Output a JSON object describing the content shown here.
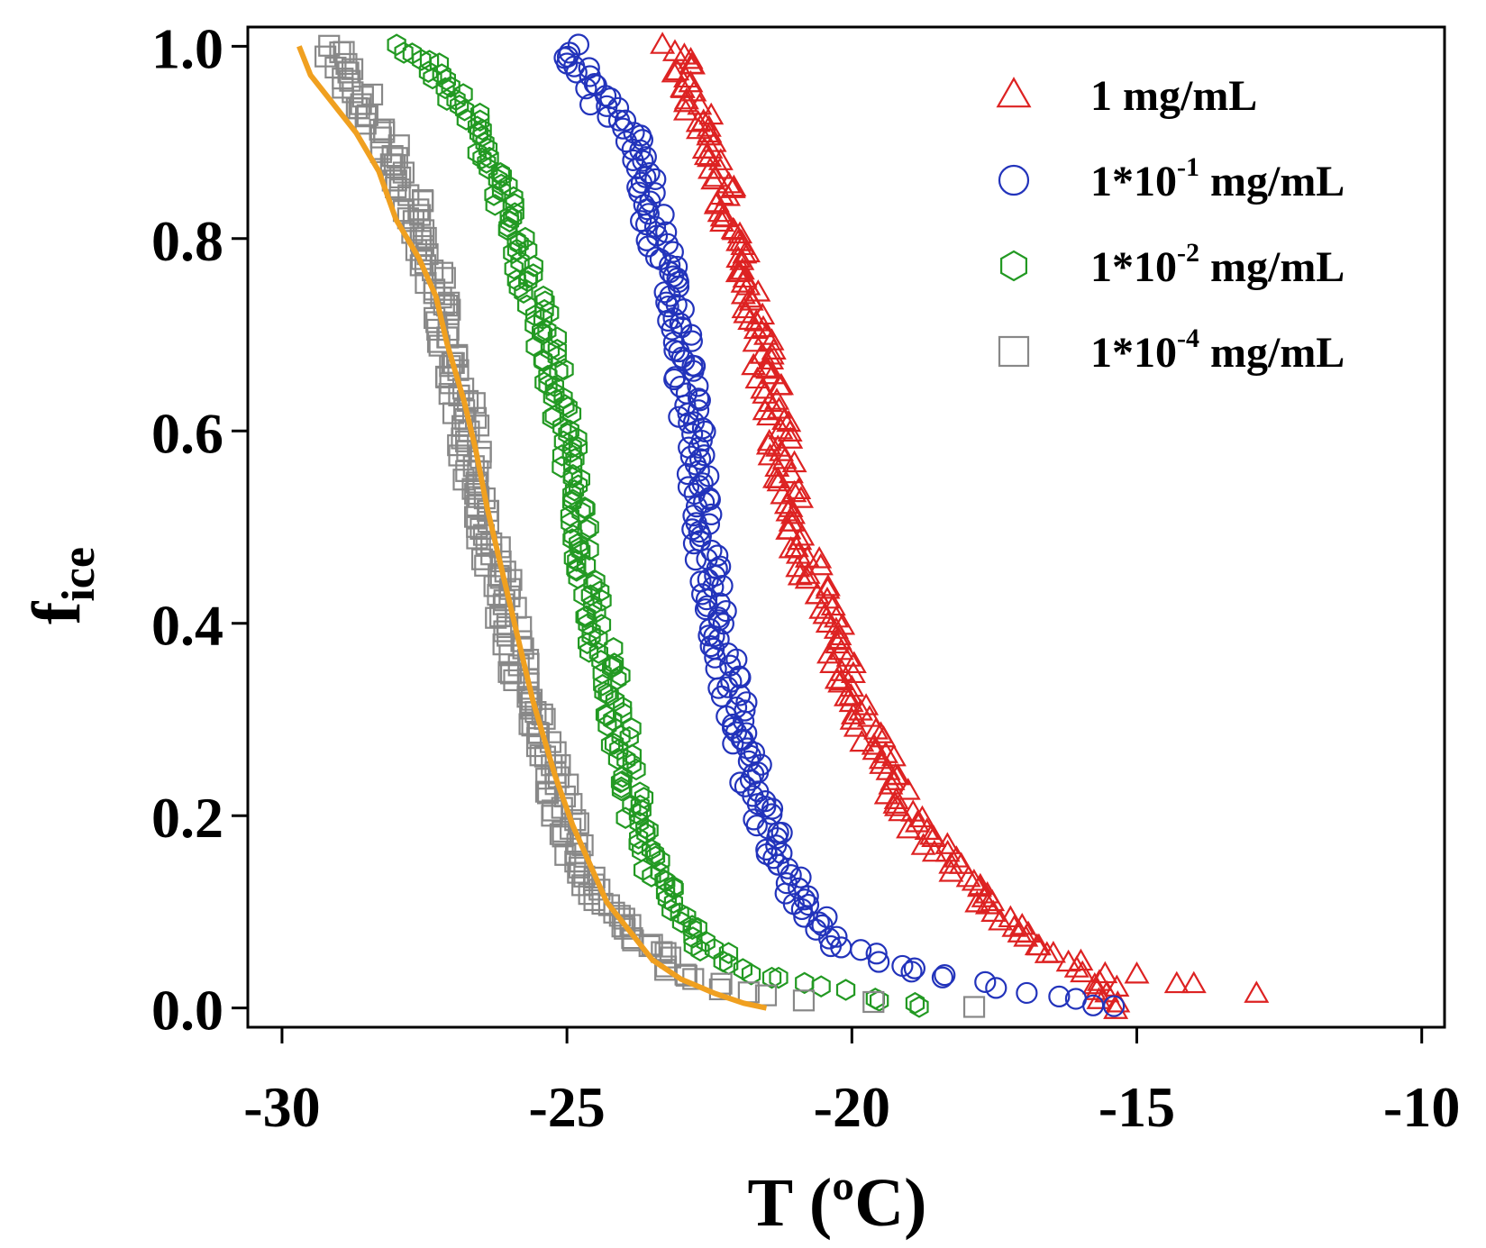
{
  "chart_data": {
    "type": "scatter",
    "xlabel": "T (ºC)",
    "ylabel_main": "f",
    "ylabel_sub": "ice",
    "xlim": [
      -30.6,
      -9.6
    ],
    "ylim": [
      -0.02,
      1.02
    ],
    "x_ticks": [
      -30,
      -25,
      -20,
      -15,
      -10
    ],
    "x_tick_labels": [
      "-30",
      "-25",
      "-20",
      "-15",
      "-10"
    ],
    "y_ticks": [
      0.0,
      0.2,
      0.4,
      0.6,
      0.8,
      1.0
    ],
    "y_tick_labels": [
      "0.0",
      "0.2",
      "0.4",
      "0.6",
      "0.8",
      "1.0"
    ],
    "legend_position": "top-right",
    "series": [
      {
        "name": "1 mg/mL",
        "name_main": "1 mg/mL",
        "name_sup": "",
        "name_tail": "",
        "marker": "triangle",
        "color": "#dd2222",
        "profile": [
          [
            -23.1,
            1.0
          ],
          [
            -22.5,
            0.9
          ],
          [
            -22.0,
            0.8
          ],
          [
            -21.6,
            0.7
          ],
          [
            -21.3,
            0.6
          ],
          [
            -21.0,
            0.5
          ],
          [
            -20.4,
            0.4
          ],
          [
            -19.8,
            0.3
          ],
          [
            -19.0,
            0.2
          ],
          [
            -17.5,
            0.1
          ],
          [
            -16.2,
            0.05
          ],
          [
            -15.6,
            0.03
          ],
          [
            -15.5,
            0.0
          ]
        ],
        "outliers": [
          [
            -15.0,
            0.035
          ],
          [
            -14.3,
            0.025
          ],
          [
            -14.0,
            0.025
          ],
          [
            -12.9,
            0.015
          ]
        ]
      },
      {
        "name": "1*10-1 mg/mL",
        "name_main": "1*10",
        "name_sup": "-1",
        "name_tail": " mg/mL",
        "marker": "circle",
        "color": "#2233bb",
        "profile": [
          [
            -25.0,
            1.0
          ],
          [
            -24.5,
            0.95
          ],
          [
            -23.8,
            0.9
          ],
          [
            -23.4,
            0.8
          ],
          [
            -23.0,
            0.7
          ],
          [
            -22.8,
            0.6
          ],
          [
            -22.6,
            0.5
          ],
          [
            -22.4,
            0.4
          ],
          [
            -22.0,
            0.3
          ],
          [
            -21.6,
            0.2
          ],
          [
            -21.0,
            0.12
          ],
          [
            -20.3,
            0.07
          ],
          [
            -19.0,
            0.04
          ],
          [
            -17.5,
            0.02
          ],
          [
            -16.0,
            0.01
          ],
          [
            -15.6,
            0.0
          ]
        ],
        "outliers": []
      },
      {
        "name": "1*10-2 mg/mL",
        "name_main": "1*10",
        "name_sup": "-2",
        "name_tail": " mg/mL",
        "marker": "hexagon",
        "color": "#229922",
        "profile": [
          [
            -27.8,
            1.0
          ],
          [
            -27.2,
            0.97
          ],
          [
            -26.7,
            0.93
          ],
          [
            -26.2,
            0.85
          ],
          [
            -25.8,
            0.78
          ],
          [
            -25.3,
            0.68
          ],
          [
            -25.0,
            0.6
          ],
          [
            -24.8,
            0.5
          ],
          [
            -24.5,
            0.4
          ],
          [
            -24.1,
            0.3
          ],
          [
            -23.8,
            0.2
          ],
          [
            -23.3,
            0.12
          ],
          [
            -22.5,
            0.06
          ],
          [
            -21.5,
            0.03
          ],
          [
            -20.0,
            0.015
          ],
          [
            -18.6,
            0.0
          ]
        ],
        "outliers": []
      },
      {
        "name": "1*10-4 mg/mL",
        "name_main": "1*10",
        "name_sup": "-4",
        "name_tail": " mg/mL",
        "marker": "square",
        "color": "#888888",
        "profile": [
          [
            -29.2,
            1.0
          ],
          [
            -28.4,
            0.93
          ],
          [
            -27.8,
            0.85
          ],
          [
            -27.3,
            0.75
          ],
          [
            -26.9,
            0.65
          ],
          [
            -26.6,
            0.55
          ],
          [
            -26.2,
            0.45
          ],
          [
            -25.8,
            0.35
          ],
          [
            -25.3,
            0.25
          ],
          [
            -24.8,
            0.15
          ],
          [
            -24.0,
            0.08
          ],
          [
            -22.8,
            0.03
          ],
          [
            -21.5,
            0.01
          ],
          [
            -18.0,
            0.0
          ]
        ],
        "outliers": []
      }
    ],
    "fit_line": {
      "color": "#f0a020",
      "points": [
        [
          -29.7,
          1.0
        ],
        [
          -29.5,
          0.97
        ],
        [
          -29.1,
          0.94
        ],
        [
          -28.7,
          0.91
        ],
        [
          -28.3,
          0.87
        ],
        [
          -28.0,
          0.82
        ],
        [
          -27.6,
          0.78
        ],
        [
          -27.3,
          0.74
        ],
        [
          -27.1,
          0.69
        ],
        [
          -26.8,
          0.63
        ],
        [
          -26.6,
          0.58
        ],
        [
          -26.4,
          0.52
        ],
        [
          -26.2,
          0.47
        ],
        [
          -26.0,
          0.42
        ],
        [
          -25.8,
          0.37
        ],
        [
          -25.6,
          0.32
        ],
        [
          -25.4,
          0.28
        ],
        [
          -25.2,
          0.24
        ],
        [
          -24.9,
          0.19
        ],
        [
          -24.6,
          0.15
        ],
        [
          -24.3,
          0.11
        ],
        [
          -23.9,
          0.08
        ],
        [
          -23.5,
          0.05
        ],
        [
          -23.0,
          0.03
        ],
        [
          -22.4,
          0.015
        ],
        [
          -21.9,
          0.005
        ],
        [
          -21.5,
          0.0
        ]
      ]
    }
  }
}
